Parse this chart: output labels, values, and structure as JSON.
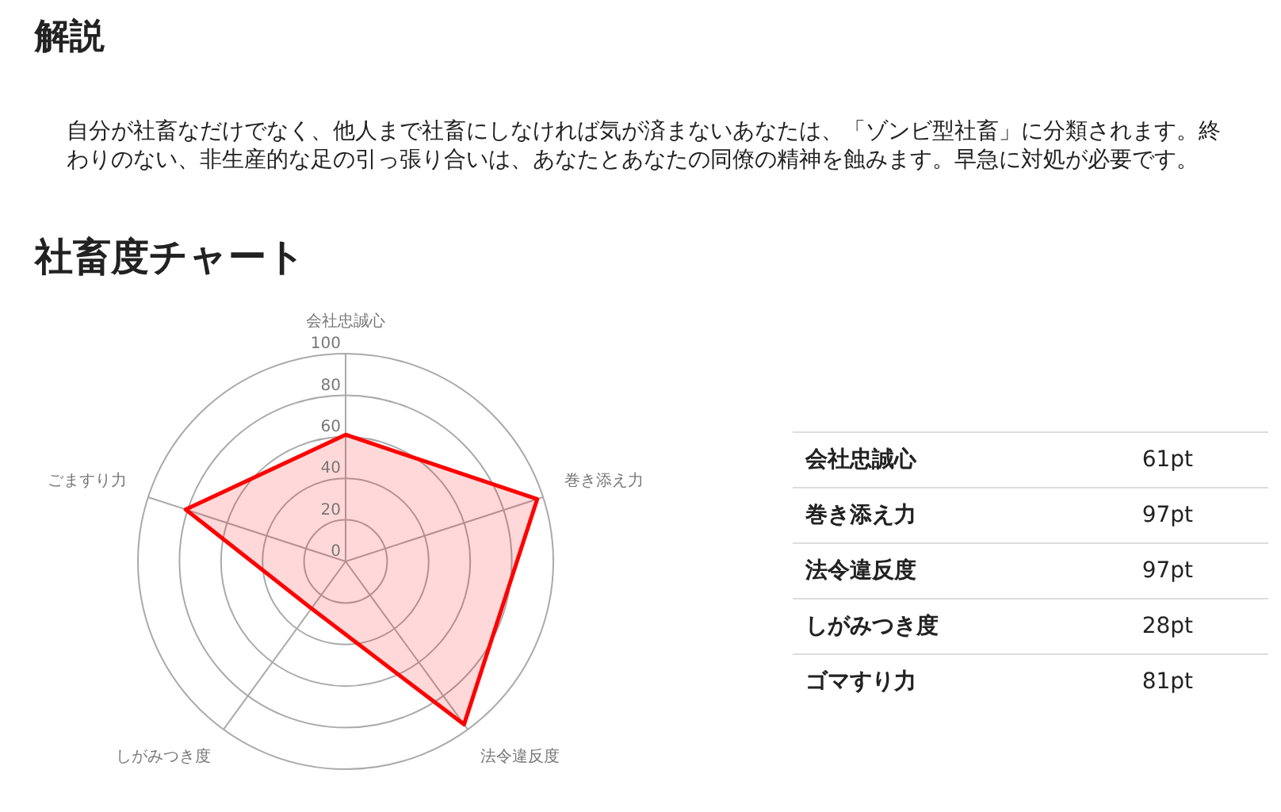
{
  "chart_data": {
    "type": "radar",
    "title": "社畜度チャート",
    "annotations": [
      "解説",
      "自分が社畜なだけでなく、他人まで社畜にしなければ気が済まないあなたは、「ゾンビ型社畜」に分類されます。終わりのない、非生産的な足の引っ張り合いは、あなたとあなたの同僚の精神を蝕みます。早急に対処が必要です。",
      "会社忠誠心",
      "61pt",
      "巻き添え力",
      "97pt",
      "法令違反度",
      "97pt",
      "しがみつき度",
      "28pt",
      "ゴマすり力",
      "81pt"
    ],
    "categories": [
      "会社忠誠心",
      "巻き添え力",
      "法令違反度",
      "しがみつき度",
      "ごますり力"
    ],
    "series": [
      {
        "color": "#ff0000",
        "values": [
          61,
          97,
          97,
          28,
          81
        ]
      }
    ],
    "ylim": [
      0,
      100
    ],
    "yticks": [
      0,
      20,
      40,
      60,
      80,
      100
    ],
    "grid": true,
    "marker": "none"
  }
}
